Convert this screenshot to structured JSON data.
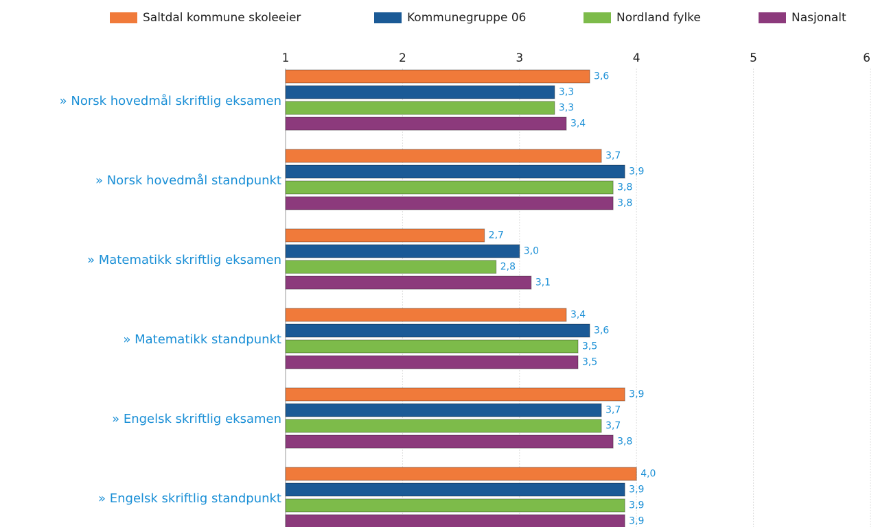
{
  "chart_data": {
    "type": "bar",
    "orientation": "horizontal",
    "categories": [
      "» Norsk hovedmål skriftlig eksamen",
      "» Norsk hovedmål standpunkt",
      "» Matematikk skriftlig eksamen",
      "» Matematikk standpunkt",
      "» Engelsk skriftlig eksamen",
      "» Engelsk skriftlig standpunkt"
    ],
    "series": [
      {
        "name": "Saltdal kommune skoleeier",
        "color": "#f07a3a",
        "values": [
          3.6,
          3.7,
          2.7,
          3.4,
          3.9,
          4.0
        ],
        "value_labels": [
          "3,6",
          "3,7",
          "2,7",
          "3,4",
          "3,9",
          "4,0"
        ]
      },
      {
        "name": "Kommunegruppe 06",
        "color": "#1b5a96",
        "values": [
          3.3,
          3.9,
          3.0,
          3.6,
          3.7,
          3.9
        ],
        "value_labels": [
          "3,3",
          "3,9",
          "3,0",
          "3,6",
          "3,7",
          "3,9"
        ]
      },
      {
        "name": "Nordland fylke",
        "color": "#7dbb4a",
        "values": [
          3.3,
          3.8,
          2.8,
          3.5,
          3.7,
          3.9
        ],
        "value_labels": [
          "3,3",
          "3,8",
          "2,8",
          "3,5",
          "3,7",
          "3,9"
        ]
      },
      {
        "name": "Nasjonalt",
        "color": "#8c3a7c",
        "values": [
          3.4,
          3.8,
          3.1,
          3.5,
          3.8,
          3.9
        ],
        "value_labels": [
          "3,4",
          "3,8",
          "3,1",
          "3,5",
          "3,8",
          "3,9"
        ]
      }
    ],
    "xlim": [
      1,
      6
    ],
    "xticks": [
      1,
      2,
      3,
      4,
      5,
      6
    ],
    "grid": true,
    "legend": "top"
  }
}
